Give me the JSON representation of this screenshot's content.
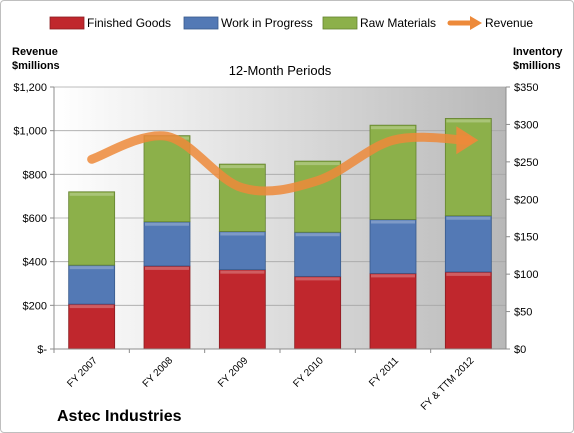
{
  "chart_data": {
    "type": "bar",
    "stacked": true,
    "title": "12-Month Periods",
    "footer_title": "Astec Industries",
    "left_axis": {
      "label_line1": "Revenue",
      "label_line2": "$millions",
      "range": [
        0,
        1200
      ],
      "ticks": [
        0,
        200,
        400,
        600,
        800,
        1000,
        1200
      ],
      "tick_labels": [
        "$-",
        "$200",
        "$400",
        "$600",
        "$800",
        "$1,000",
        "$1,200"
      ]
    },
    "right_axis": {
      "label_line1": "Inventory",
      "label_line2": "$millions",
      "range": [
        0,
        350
      ],
      "ticks": [
        0,
        50,
        100,
        150,
        200,
        250,
        300,
        350
      ],
      "tick_labels": [
        "$0",
        "$50",
        "$100",
        "$150",
        "$200",
        "$250",
        "$300",
        "$350"
      ]
    },
    "categories": [
      "FY 2007",
      "FY 2008",
      "FY 2009",
      "FY 2010",
      "FY 2011",
      "FY & TTM 2012"
    ],
    "series": [
      {
        "name": "Finished Goods",
        "axis": "right",
        "color": "#c0272d",
        "values": [
          60,
          111,
          106,
          97,
          101,
          103
        ]
      },
      {
        "name": "Work in Progress",
        "axis": "right",
        "color": "#5379b5",
        "values": [
          52,
          59,
          51,
          59,
          72,
          75
        ]
      },
      {
        "name": "Raw Materials",
        "axis": "right",
        "color": "#8cb04a",
        "values": [
          98,
          115,
          90,
          95,
          126,
          130
        ]
      },
      {
        "name": "Revenue",
        "axis": "left",
        "type": "line",
        "color": "#ed8a3a",
        "values": [
          869,
          974,
          738,
          771,
          956,
          956
        ]
      }
    ],
    "legend_position": "top",
    "grid": true
  }
}
